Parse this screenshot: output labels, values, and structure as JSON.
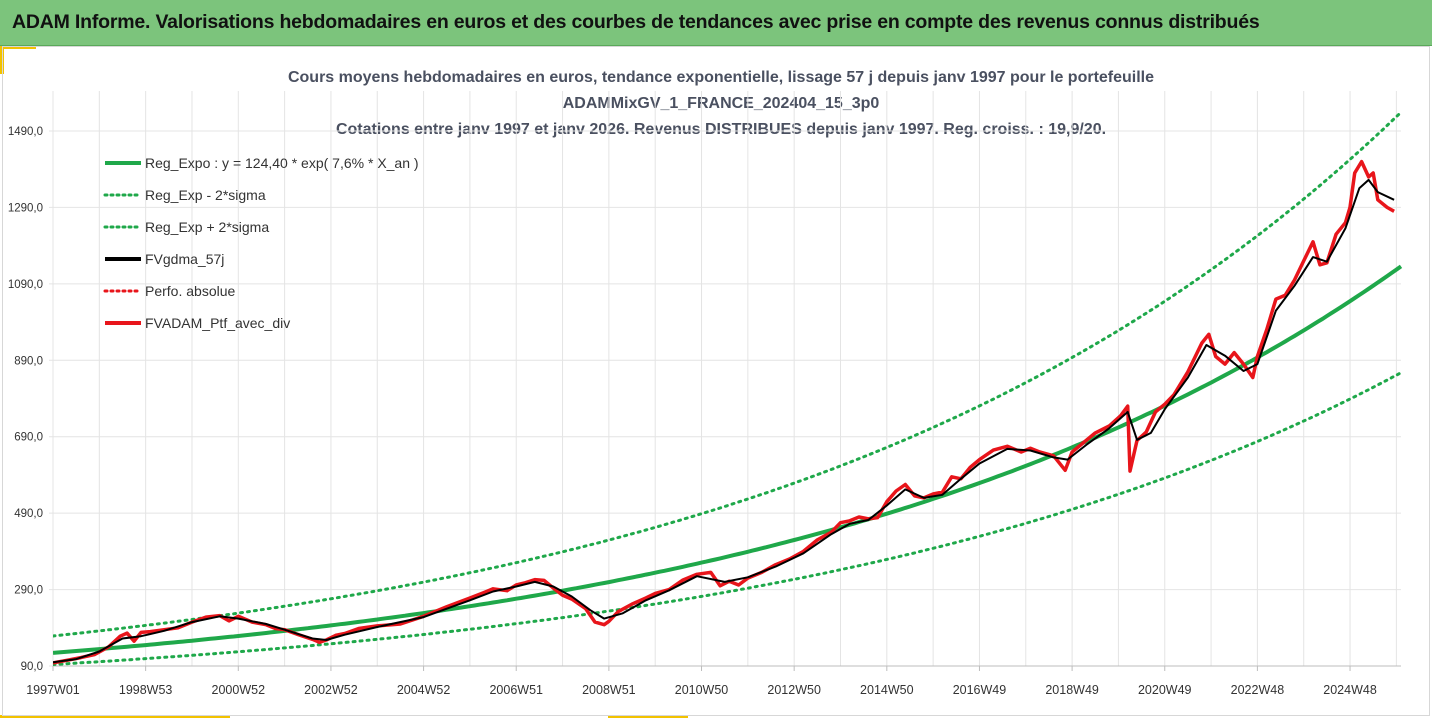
{
  "header": {
    "title": "ADAM Informe. Valorisations hebdomadaires en euros et des courbes de tendances avec prise en compte des revenus connus distribués"
  },
  "colors": {
    "banner": "#7cc47c",
    "accent": "#f2c200",
    "reg_green": "#1fa84a",
    "smooth_black": "#000000",
    "perf_red": "#e8151b"
  },
  "chart_data": {
    "type": "line",
    "title_lines": [
      "Cours moyens hebdomadaires  en euros, tendance exponentielle, lissage 57 j depuis janv 1997 pour le portefeuille",
      "ADAMMixGV_1_FRANCE_202404_15_3p0",
      "Cotations entre janv 1997 et janv 2026. Revenus DISTRIBUES depuis janv 1997. Reg. croiss. : 19,9/20."
    ],
    "xlabel": "",
    "ylabel": "",
    "ylim": [
      90,
      1490
    ],
    "xlim": [
      1997.0,
      2026.1
    ],
    "y_ticks": [
      90,
      290,
      490,
      690,
      890,
      1090,
      1290,
      1490
    ],
    "y_tick_labels": [
      "90,0",
      "290,0",
      "490,0",
      "690,0",
      "890,0",
      "1090,0",
      "1290,0",
      "1490,0"
    ],
    "x_tick_years": [
      1997.0,
      1999.0,
      2001.0,
      2003.0,
      2005.0,
      2007.0,
      2009.0,
      2011.0,
      2013.0,
      2015.0,
      2017.0,
      2019.0,
      2021.0,
      2023.0,
      2025.0
    ],
    "x_tick_labels": [
      "1997W01",
      "1998W53",
      "2000W52",
      "2002W52",
      "2004W52",
      "2006W51",
      "2008W51",
      "2010W50",
      "2012W50",
      "2014W50",
      "2016W49",
      "2018W49",
      "2020W49",
      "2022W48",
      "2024W48"
    ],
    "grid": true,
    "legend_position": "top-left",
    "legend": [
      {
        "label": "Reg_Expo : y = 124,40 * exp( 7,6% *  X_an )",
        "style": "solid",
        "color": "#1fa84a"
      },
      {
        "label": "Reg_Exp - 2*sigma",
        "style": "dotted",
        "color": "#1fa84a"
      },
      {
        "label": "Reg_Exp + 2*sigma",
        "style": "dotted",
        "color": "#1fa84a"
      },
      {
        "label": "FVgdma_57j",
        "style": "solid",
        "color": "#000000"
      },
      {
        "label": "Perfo. absolue",
        "style": "dotted",
        "color": "#e8151b"
      },
      {
        "label": "FVADAM_Ptf_avec_div",
        "style": "solid",
        "color": "#e8151b"
      }
    ],
    "regression": {
      "a": 124.4,
      "rate": 0.076,
      "factor_minus_2sigma": 0.755,
      "factor_plus_2sigma": 1.355
    },
    "series": [
      {
        "name": "FVADAM_Ptf_avec_div",
        "x": [
          1997.0,
          1997.3,
          1997.6,
          1997.9,
          1998.2,
          1998.45,
          1998.6,
          1998.75,
          1998.9,
          1999.1,
          1999.4,
          1999.7,
          2000.0,
          2000.3,
          2000.6,
          2000.8,
          2001.0,
          2001.3,
          2001.6,
          2001.8,
          2002.0,
          2002.3,
          2002.6,
          2002.75,
          2002.9,
          2003.1,
          2003.3,
          2003.6,
          2004.0,
          2004.5,
          2005.0,
          2005.5,
          2006.0,
          2006.3,
          2006.5,
          2006.8,
          2007.0,
          2007.2,
          2007.4,
          2007.6,
          2007.8,
          2008.0,
          2008.2,
          2008.5,
          2008.7,
          2008.9,
          2009.0,
          2009.2,
          2009.5,
          2009.8,
          2010.0,
          2010.3,
          2010.6,
          2010.9,
          2011.2,
          2011.4,
          2011.6,
          2011.8,
          2012.0,
          2012.3,
          2012.6,
          2012.9,
          2013.2,
          2013.5,
          2013.8,
          2014.0,
          2014.2,
          2014.4,
          2014.6,
          2014.8,
          2015.0,
          2015.2,
          2015.4,
          2015.6,
          2015.8,
          2016.0,
          2016.2,
          2016.4,
          2016.6,
          2016.8,
          2017.0,
          2017.3,
          2017.6,
          2017.9,
          2018.1,
          2018.3,
          2018.6,
          2018.85,
          2019.0,
          2019.2,
          2019.5,
          2019.8,
          2020.05,
          2020.2,
          2020.25,
          2020.4,
          2020.6,
          2020.8,
          2021.0,
          2021.2,
          2021.5,
          2021.8,
          2021.95,
          2022.1,
          2022.3,
          2022.5,
          2022.7,
          2022.9,
          2023.0,
          2023.2,
          2023.4,
          2023.6,
          2023.8,
          2024.0,
          2024.2,
          2024.35,
          2024.5,
          2024.7,
          2024.9,
          2025.0,
          2025.1,
          2025.25,
          2025.4,
          2025.5,
          2025.6,
          2025.8,
          2025.95
        ],
        "values": [
          98,
          105,
          112,
          120,
          140,
          168,
          176,
          155,
          178,
          180,
          185,
          190,
          205,
          218,
          222,
          208,
          220,
          205,
          198,
          188,
          185,
          172,
          160,
          152,
          158,
          170,
          175,
          188,
          195,
          200,
          220,
          245,
          268,
          282,
          292,
          287,
          302,
          308,
          316,
          314,
          294,
          275,
          265,
          240,
          205,
          198,
          207,
          232,
          252,
          268,
          280,
          290,
          315,
          330,
          335,
          300,
          312,
          302,
          320,
          335,
          355,
          370,
          390,
          420,
          440,
          465,
          470,
          480,
          475,
          478,
          520,
          548,
          565,
          535,
          530,
          540,
          545,
          585,
          580,
          610,
          630,
          655,
          665,
          650,
          660,
          650,
          640,
          602,
          650,
          670,
          700,
          718,
          745,
          770,
          600,
          680,
          702,
          755,
          775,
          800,
          860,
          935,
          958,
          900,
          880,
          910,
          880,
          845,
          900,
          970,
          1050,
          1060,
          1100,
          1150,
          1200,
          1140,
          1145,
          1220,
          1250,
          1290,
          1380,
          1410,
          1370,
          1380,
          1310,
          1290,
          1280
        ]
      },
      {
        "name": "FVgdma_57j",
        "x": [
          1997.0,
          1997.5,
          1998.0,
          1998.5,
          1998.9,
          1999.4,
          2000.0,
          2000.6,
          2001.0,
          2001.6,
          2002.0,
          2002.6,
          2002.9,
          2003.3,
          2004.0,
          2005.0,
          2006.0,
          2006.5,
          2007.0,
          2007.4,
          2007.8,
          2008.2,
          2008.6,
          2008.9,
          2009.3,
          2009.8,
          2010.3,
          2010.9,
          2011.5,
          2012.0,
          2012.6,
          2013.2,
          2013.8,
          2014.2,
          2014.6,
          2015.0,
          2015.4,
          2015.8,
          2016.2,
          2016.6,
          2017.0,
          2017.6,
          2018.1,
          2018.6,
          2018.9,
          2019.3,
          2019.8,
          2020.2,
          2020.4,
          2020.7,
          2021.0,
          2021.5,
          2021.9,
          2022.3,
          2022.7,
          2023.0,
          2023.4,
          2023.8,
          2024.2,
          2024.5,
          2024.9,
          2025.2,
          2025.4,
          2025.6,
          2025.95
        ],
        "values": [
          100,
          108,
          128,
          162,
          168,
          182,
          205,
          220,
          214,
          200,
          185,
          162,
          158,
          172,
          192,
          218,
          262,
          285,
          298,
          310,
          298,
          272,
          236,
          214,
          228,
          262,
          288,
          325,
          310,
          322,
          350,
          385,
          435,
          462,
          472,
          510,
          552,
          530,
          538,
          580,
          620,
          658,
          654,
          636,
          630,
          668,
          712,
          755,
          682,
          700,
          762,
          845,
          930,
          902,
          862,
          880,
          1020,
          1085,
          1160,
          1148,
          1235,
          1340,
          1362,
          1330,
          1310
        ]
      }
    ]
  }
}
